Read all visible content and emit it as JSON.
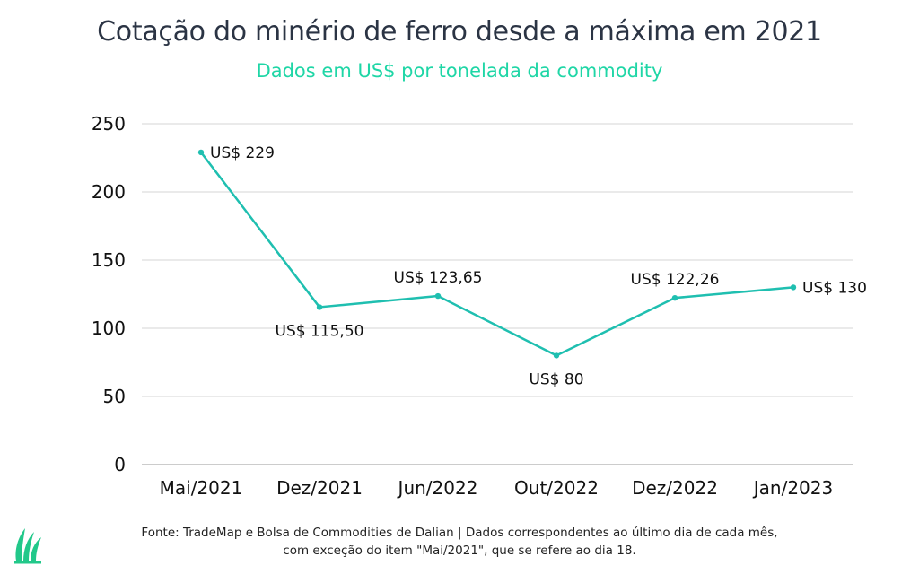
{
  "header": {
    "title": "Cotação do minério de ferro desde a máxima em 2021",
    "subtitle": "Dados em US$ por tonelada da commodity"
  },
  "footer": {
    "source_line1": "Fonte: TradeMap e Bolsa de Commodities de Dalian | Dados correspondentes ao último dia de cada mês,",
    "source_line2": "com exceção do item \"Mai/2021\", que se refere ao dia 18."
  },
  "logo": {
    "icon": "green-leaf-logo-icon",
    "color": "#22c88a"
  },
  "chart_data": {
    "type": "line",
    "title": "Cotação do minério de ferro desde a máxima em 2021",
    "subtitle": "Dados em US$ por tonelada da commodity",
    "categories": [
      "Mai/2021",
      "Dez/2021",
      "Jun/2022",
      "Out/2022",
      "Dez/2022",
      "Jan/2023"
    ],
    "series": [
      {
        "values": [
          229,
          115.5,
          123.65,
          80,
          122.26,
          130
        ],
        "data_labels": [
          "US$ 229",
          "US$ 115,50",
          "US$ 123,65",
          "US$ 80",
          "US$ 122,26",
          "US$ 130"
        ],
        "color": "#1fbfb0"
      }
    ],
    "ylim": [
      0,
      250
    ],
    "yticks": [
      0,
      50,
      100,
      150,
      200,
      250
    ],
    "grid": true,
    "legend": "none",
    "xlabel": "",
    "ylabel": ""
  }
}
